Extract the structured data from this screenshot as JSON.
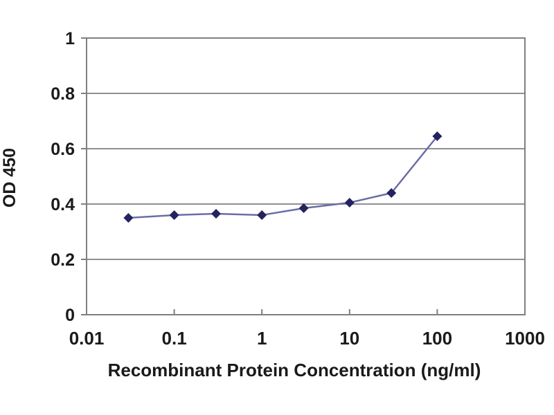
{
  "chart_data": {
    "type": "line",
    "title": "",
    "xlabel": "Recombinant Protein Concentration (ng/ml)",
    "ylabel": "OD 450",
    "x_scale": "log10",
    "xlim": [
      0.01,
      1000
    ],
    "ylim": [
      0,
      1
    ],
    "x_ticks": [
      {
        "value": 0.01,
        "label": "0.01"
      },
      {
        "value": 0.1,
        "label": "0.1"
      },
      {
        "value": 1,
        "label": "1"
      },
      {
        "value": 10,
        "label": "10"
      },
      {
        "value": 100,
        "label": "100"
      },
      {
        "value": 1000,
        "label": "1000"
      }
    ],
    "y_ticks": [
      {
        "value": 0,
        "label": "0"
      },
      {
        "value": 0.2,
        "label": "0.2"
      },
      {
        "value": 0.4,
        "label": "0.4"
      },
      {
        "value": 0.6,
        "label": "0.6"
      },
      {
        "value": 0.8,
        "label": "0.8"
      },
      {
        "value": 1,
        "label": "1"
      }
    ],
    "grid": "horizontal",
    "legend": "none",
    "x": [
      0.03,
      0.1,
      0.3,
      1,
      3,
      10,
      30,
      100
    ],
    "series": [
      {
        "name": "OD 450",
        "values": [
          0.35,
          0.36,
          0.365,
          0.36,
          0.385,
          0.405,
          0.44,
          0.645
        ],
        "marker": "diamond"
      }
    ],
    "colors": {
      "line": "#6c6ca8",
      "marker": "#232360",
      "grid": "#8f8f8f",
      "axis": "#7f7f7f",
      "text": "#1a1a1a",
      "background": "#ffffff"
    }
  }
}
